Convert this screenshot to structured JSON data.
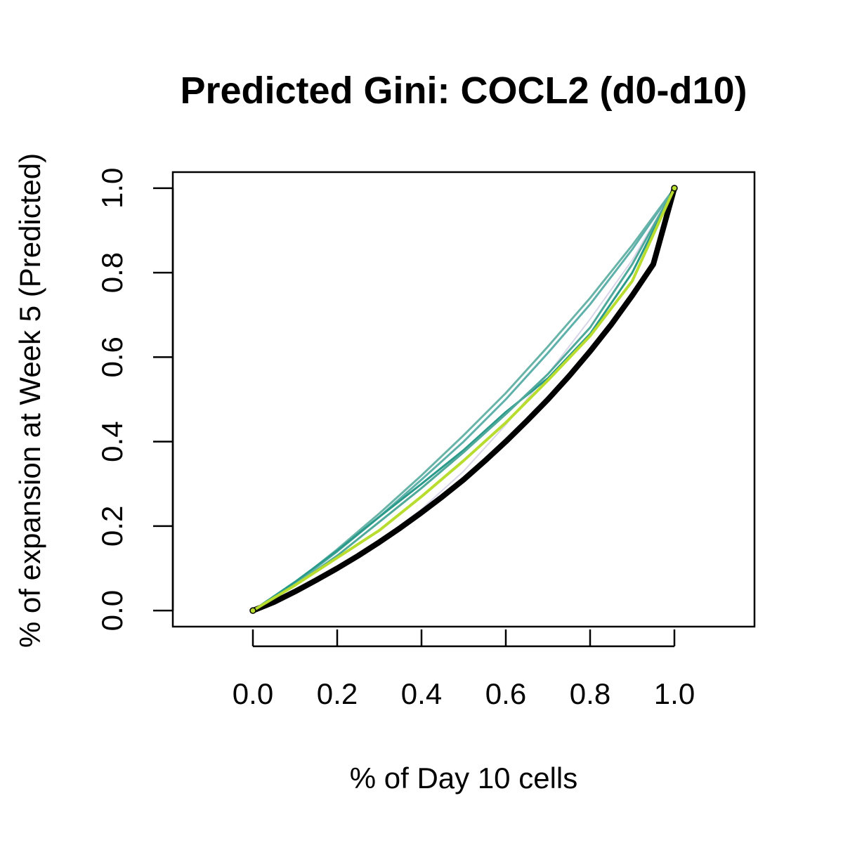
{
  "chart_data": {
    "type": "line",
    "title": "Predicted Gini: COCL2 (d0-d10)",
    "xlabel": "% of Day 10 cells",
    "ylabel": "% of expansion at Week 5 (Predicted)",
    "xlim": [
      -0.19,
      1.19
    ],
    "ylim": [
      -0.038,
      1.038
    ],
    "x_ticks": [
      "0.0",
      "0.2",
      "0.4",
      "0.6",
      "0.8",
      "1.0"
    ],
    "y_ticks": [
      "0.0",
      "0.2",
      "0.4",
      "0.6",
      "0.8",
      "1.0"
    ],
    "grid": false,
    "legend": "none",
    "series": [
      {
        "color": "#d9d4e8",
        "width": 2,
        "x": [
          0,
          0.1,
          0.2,
          0.3,
          0.4,
          0.5,
          0.6,
          0.7,
          0.8,
          0.9,
          1.0
        ],
        "y": [
          0,
          0.045,
          0.1,
          0.165,
          0.24,
          0.33,
          0.44,
          0.56,
          0.69,
          0.83,
          1.0
        ]
      },
      {
        "color": "#69b4a9",
        "width": 3,
        "x": [
          0,
          0.1,
          0.2,
          0.3,
          0.4,
          0.5,
          0.6,
          0.7,
          0.8,
          0.9,
          1.0
        ],
        "y": [
          0,
          0.065,
          0.145,
          0.23,
          0.32,
          0.415,
          0.515,
          0.625,
          0.74,
          0.865,
          1.0
        ]
      },
      {
        "color": "#5eb1aa",
        "width": 3,
        "x": [
          0,
          0.1,
          0.2,
          0.3,
          0.4,
          0.5,
          0.6,
          0.7,
          0.8,
          0.9,
          1.0
        ],
        "y": [
          0,
          0.063,
          0.14,
          0.222,
          0.31,
          0.4,
          0.5,
          0.61,
          0.725,
          0.855,
          1.0
        ]
      },
      {
        "color": "#2a9a8b",
        "width": 3,
        "x": [
          0,
          0.1,
          0.2,
          0.3,
          0.4,
          0.5,
          0.6,
          0.7,
          0.8,
          0.9,
          1.0
        ],
        "y": [
          0,
          0.068,
          0.142,
          0.222,
          0.3,
          0.38,
          0.47,
          0.55,
          0.655,
          0.8,
          1.0
        ]
      },
      {
        "color": "#4fa99a",
        "width": 3,
        "x": [
          0,
          0.1,
          0.2,
          0.3,
          0.4,
          0.5,
          0.6,
          0.7,
          0.8,
          0.9,
          1.0
        ],
        "y": [
          0,
          0.06,
          0.13,
          0.21,
          0.29,
          0.375,
          0.465,
          0.56,
          0.67,
          0.82,
          1.0
        ]
      },
      {
        "color": "#000000",
        "width": 8,
        "x": [
          0,
          0.05,
          0.1,
          0.15,
          0.2,
          0.25,
          0.3,
          0.35,
          0.4,
          0.45,
          0.5,
          0.55,
          0.6,
          0.65,
          0.7,
          0.75,
          0.8,
          0.85,
          0.9,
          0.95,
          1.0
        ],
        "y": [
          0,
          0.02,
          0.045,
          0.072,
          0.1,
          0.13,
          0.162,
          0.196,
          0.232,
          0.27,
          0.31,
          0.354,
          0.4,
          0.449,
          0.5,
          0.555,
          0.614,
          0.677,
          0.746,
          0.82,
          1.0
        ]
      },
      {
        "color": "#b8dd2e",
        "width": 4,
        "x": [
          0,
          0.1,
          0.2,
          0.3,
          0.4,
          0.5,
          0.6,
          0.7,
          0.8,
          0.9,
          1.0
        ],
        "y": [
          0,
          0.06,
          0.125,
          0.19,
          0.27,
          0.355,
          0.445,
          0.545,
          0.65,
          0.78,
          1.0
        ]
      }
    ],
    "start_point": {
      "x": 0,
      "y": 0,
      "color": "#b8dd2e"
    },
    "end_point": {
      "x": 1.0,
      "y": 1.0,
      "color": "#b8dd2e"
    }
  }
}
